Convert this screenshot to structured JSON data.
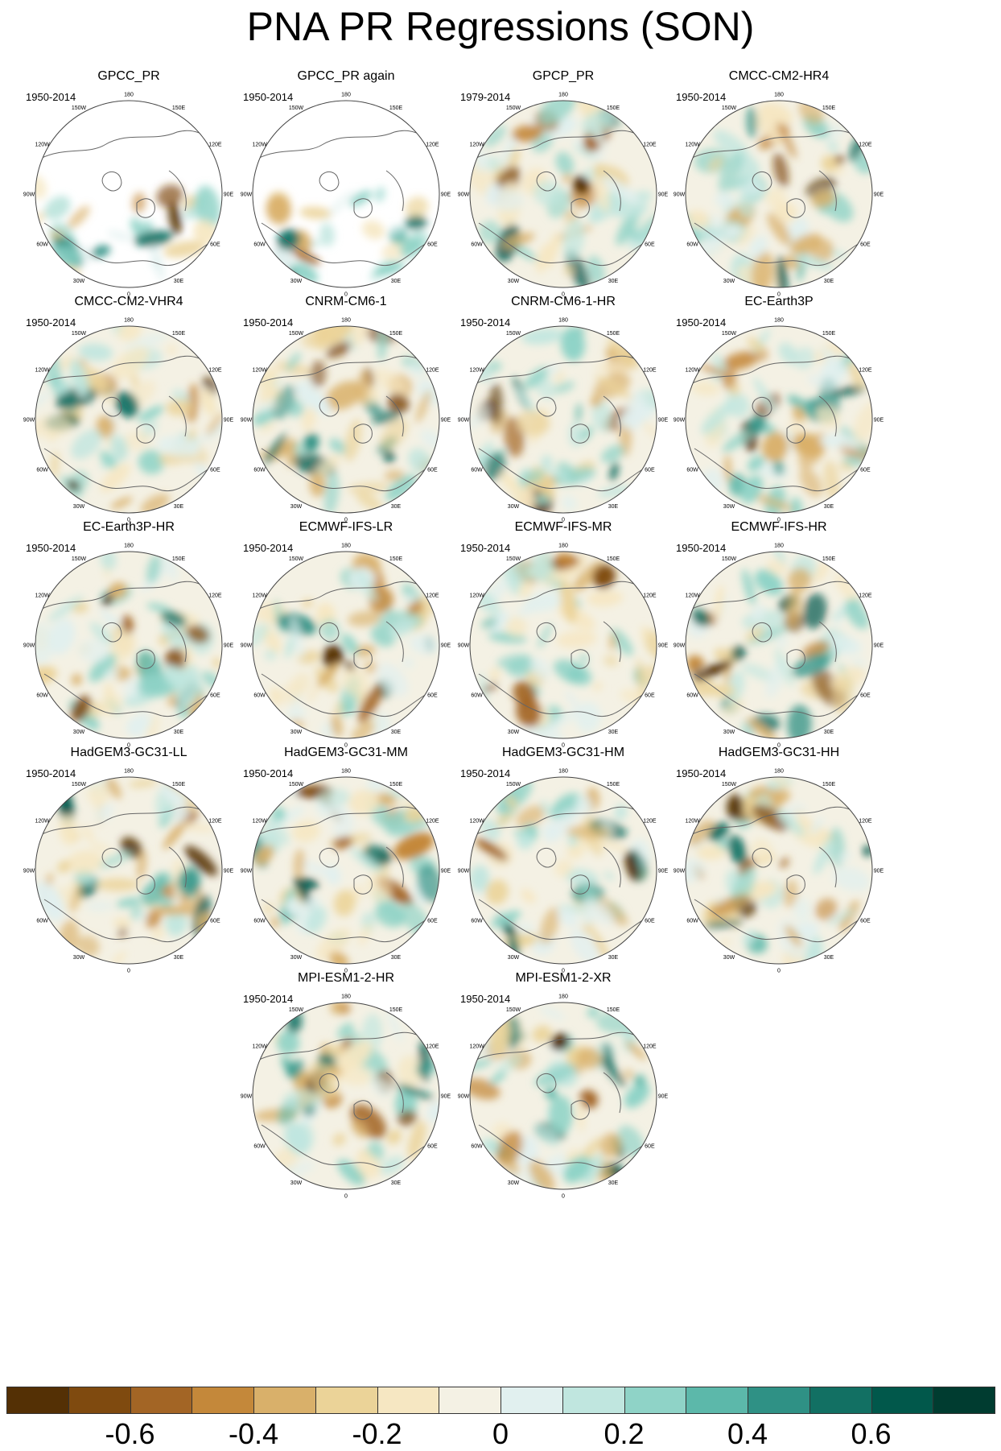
{
  "title": "PNA PR Regressions (SON)",
  "lon_labels": [
    "180",
    "150E",
    "120E",
    "90E",
    "60E",
    "30E",
    "0",
    "30W",
    "60W",
    "90W",
    "120W",
    "150W"
  ],
  "chart_data": {
    "type": "heatmap",
    "title": "PNA PR Regressions (SON)",
    "projection": "north-polar-stereographic",
    "colorbar": {
      "ticks": [
        "-0.6",
        "-0.4",
        "-0.2",
        "0",
        "0.2",
        "0.4",
        "0.6"
      ],
      "tick_values": [
        -0.6,
        -0.4,
        -0.2,
        0,
        0.2,
        0.4,
        0.6
      ],
      "levels": [
        -0.7,
        -0.6,
        -0.5,
        -0.4,
        -0.3,
        -0.2,
        -0.1,
        0,
        0.1,
        0.2,
        0.3,
        0.4,
        0.5,
        0.6,
        0.7
      ],
      "colors": [
        "#543005",
        "#7f4a0f",
        "#a36525",
        "#c4883a",
        "#d9b06a",
        "#ebd398",
        "#f6e7c2",
        "#f4f1e4",
        "#e1f0ef",
        "#c0e6df",
        "#8fd3c7",
        "#5cb8aa",
        "#2f9185",
        "#127063",
        "#01584b",
        "#003c30"
      ]
    },
    "panels": [
      {
        "name": "GPCC_PR",
        "period": "1950-2014"
      },
      {
        "name": "GPCC_PR again",
        "period": "1950-2014"
      },
      {
        "name": "GPCP_PR",
        "period": "1979-2014"
      },
      {
        "name": "CMCC-CM2-HR4",
        "period": "1950-2014"
      },
      {
        "name": "CMCC-CM2-VHR4",
        "period": "1950-2014"
      },
      {
        "name": "CNRM-CM6-1",
        "period": "1950-2014"
      },
      {
        "name": "CNRM-CM6-1-HR",
        "period": "1950-2014"
      },
      {
        "name": "EC-Earth3P",
        "period": "1950-2014"
      },
      {
        "name": "EC-Earth3P-HR",
        "period": "1950-2014"
      },
      {
        "name": "ECMWF-IFS-LR",
        "period": "1950-2014"
      },
      {
        "name": "ECMWF-IFS-MR",
        "period": "1950-2014"
      },
      {
        "name": "ECMWF-IFS-HR",
        "period": "1950-2014"
      },
      {
        "name": "HadGEM3-GC31-LL",
        "period": "1950-2014"
      },
      {
        "name": "HadGEM3-GC31-MM",
        "period": "1950-2014"
      },
      {
        "name": "HadGEM3-GC31-HM",
        "period": "1950-2014"
      },
      {
        "name": "HadGEM3-GC31-HH",
        "period": "1950-2014"
      },
      {
        "name": "MPI-ESM1-2-HR",
        "period": "1950-2014"
      },
      {
        "name": "MPI-ESM1-2-XR",
        "period": "1950-2014"
      }
    ]
  }
}
